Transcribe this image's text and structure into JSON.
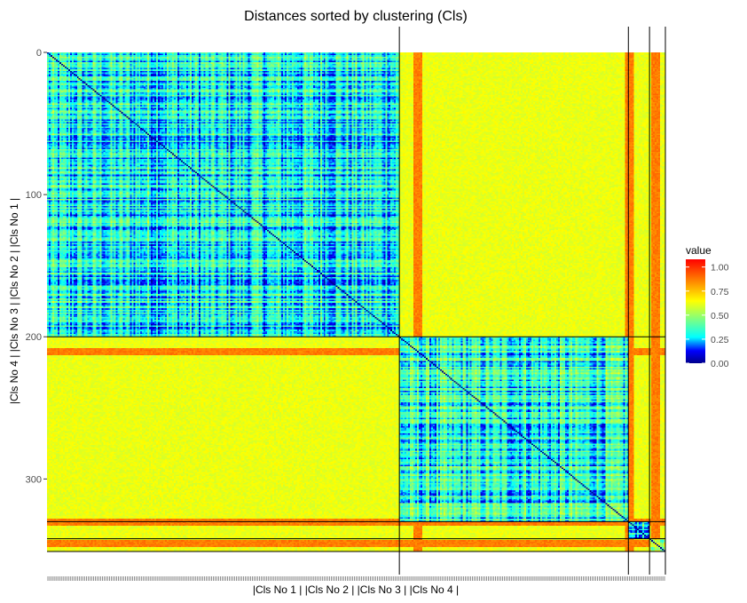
{
  "chart_data": {
    "type": "heatmap",
    "title": "Distances sorted by clustering (Cls)",
    "xlabel": "|Cls No 1 | |Cls No 2 | |Cls No 3 | |Cls No 4 |",
    "ylabel": "|Cls No 4 | |Cls No 3 | |Cls No 2 | |Cls No 1 |",
    "n_points": 351,
    "axis_range": [
      0,
      351
    ],
    "y_ticks": [
      0,
      100,
      200,
      300
    ],
    "cluster_boundaries": [
      0,
      200,
      330,
      342,
      351
    ],
    "legend": {
      "title": "value",
      "ticks": [
        0.0,
        0.25,
        0.5,
        0.75,
        1.0
      ],
      "tick_labels": [
        "0.00",
        "0.25",
        "0.50",
        "0.75",
        "1.00"
      ],
      "range": [
        0,
        1.08
      ],
      "colors": [
        "#00008b",
        "#0000ff",
        "#00ffff",
        "#ffff00",
        "#ff0000"
      ],
      "color_stops": [
        0.0,
        0.12,
        0.25,
        0.6,
        1.0
      ]
    },
    "within_cluster_distance": {
      "Cls No 1": 0.3,
      "Cls No 2": 0.32,
      "Cls No 3": 0.25,
      "Cls No 4": 0.45
    },
    "between_cluster_distance": 0.62,
    "high_distance_rows": [
      210,
      330,
      345
    ],
    "grid": false
  }
}
